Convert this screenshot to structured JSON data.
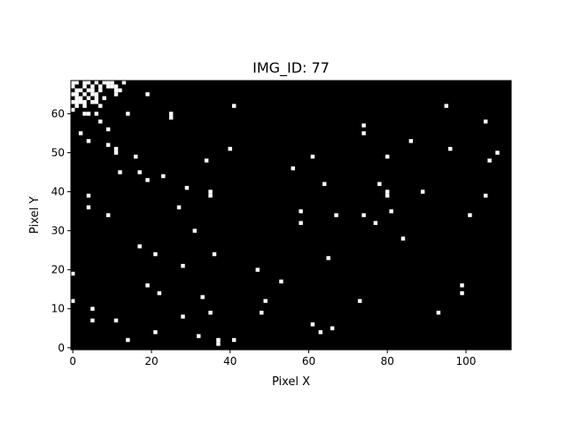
{
  "chart_data": {
    "type": "heatmap",
    "title": "IMG_ID: 77",
    "xlabel": "Pixel X",
    "ylabel": "Pixel Y",
    "xlim": [
      0,
      111
    ],
    "ylim": [
      0,
      68
    ],
    "xticks": [
      0,
      20,
      40,
      60,
      80,
      100
    ],
    "yticks": [
      0,
      10,
      20,
      30,
      40,
      50,
      60
    ],
    "grid": false,
    "colors": {
      "background": "#000000",
      "pixel_on": "#ffffff"
    },
    "pixels_on": [
      [
        0,
        68
      ],
      [
        1,
        68
      ],
      [
        3,
        68
      ],
      [
        4,
        68
      ],
      [
        6,
        68
      ],
      [
        8,
        68
      ],
      [
        9,
        68
      ],
      [
        10,
        68
      ],
      [
        13,
        68
      ],
      [
        0,
        67
      ],
      [
        3,
        67
      ],
      [
        5,
        67
      ],
      [
        7,
        67
      ],
      [
        9,
        67
      ],
      [
        10,
        67
      ],
      [
        11,
        67
      ],
      [
        1,
        66
      ],
      [
        2,
        66
      ],
      [
        4,
        66
      ],
      [
        5,
        66
      ],
      [
        7,
        66
      ],
      [
        11,
        66
      ],
      [
        12,
        66
      ],
      [
        0,
        65
      ],
      [
        1,
        65
      ],
      [
        3,
        65
      ],
      [
        5,
        65
      ],
      [
        6,
        65
      ],
      [
        11,
        65
      ],
      [
        19,
        65
      ],
      [
        1,
        64
      ],
      [
        2,
        64
      ],
      [
        4,
        64
      ],
      [
        6,
        64
      ],
      [
        8,
        64
      ],
      [
        0,
        63
      ],
      [
        1,
        63
      ],
      [
        2,
        63
      ],
      [
        3,
        63
      ],
      [
        5,
        63
      ],
      [
        6,
        63
      ],
      [
        1,
        62
      ],
      [
        3,
        62
      ],
      [
        7,
        62
      ],
      [
        41,
        62
      ],
      [
        95,
        62
      ],
      [
        0,
        61
      ],
      [
        3,
        60
      ],
      [
        4,
        60
      ],
      [
        6,
        60
      ],
      [
        14,
        60
      ],
      [
        25,
        60
      ],
      [
        25,
        59
      ],
      [
        7,
        58
      ],
      [
        105,
        58
      ],
      [
        74,
        57
      ],
      [
        9,
        56
      ],
      [
        2,
        55
      ],
      [
        74,
        55
      ],
      [
        4,
        53
      ],
      [
        86,
        53
      ],
      [
        9,
        52
      ],
      [
        11,
        51
      ],
      [
        40,
        51
      ],
      [
        96,
        51
      ],
      [
        11,
        50
      ],
      [
        108,
        50
      ],
      [
        16,
        49
      ],
      [
        61,
        49
      ],
      [
        80,
        49
      ],
      [
        34,
        48
      ],
      [
        106,
        48
      ],
      [
        56,
        46
      ],
      [
        12,
        45
      ],
      [
        17,
        45
      ],
      [
        23,
        44
      ],
      [
        19,
        43
      ],
      [
        64,
        42
      ],
      [
        78,
        42
      ],
      [
        29,
        41
      ],
      [
        35,
        40
      ],
      [
        80,
        40
      ],
      [
        89,
        40
      ],
      [
        4,
        39
      ],
      [
        35,
        39
      ],
      [
        80,
        39
      ],
      [
        105,
        39
      ],
      [
        27,
        36
      ],
      [
        4,
        36
      ],
      [
        58,
        35
      ],
      [
        81,
        35
      ],
      [
        9,
        34
      ],
      [
        67,
        34
      ],
      [
        74,
        34
      ],
      [
        101,
        34
      ],
      [
        58,
        32
      ],
      [
        77,
        32
      ],
      [
        31,
        30
      ],
      [
        84,
        28
      ],
      [
        17,
        26
      ],
      [
        21,
        24
      ],
      [
        36,
        24
      ],
      [
        65,
        23
      ],
      [
        28,
        21
      ],
      [
        47,
        20
      ],
      [
        0,
        19
      ],
      [
        53,
        17
      ],
      [
        19,
        16
      ],
      [
        99,
        16
      ],
      [
        22,
        14
      ],
      [
        99,
        14
      ],
      [
        33,
        13
      ],
      [
        0,
        12
      ],
      [
        49,
        12
      ],
      [
        73,
        12
      ],
      [
        5,
        10
      ],
      [
        35,
        9
      ],
      [
        48,
        9
      ],
      [
        93,
        9
      ],
      [
        28,
        8
      ],
      [
        5,
        7
      ],
      [
        11,
        7
      ],
      [
        61,
        6
      ],
      [
        66,
        5
      ],
      [
        21,
        4
      ],
      [
        63,
        4
      ],
      [
        32,
        3
      ],
      [
        14,
        2
      ],
      [
        37,
        2
      ],
      [
        41,
        2
      ],
      [
        37,
        1
      ]
    ]
  }
}
